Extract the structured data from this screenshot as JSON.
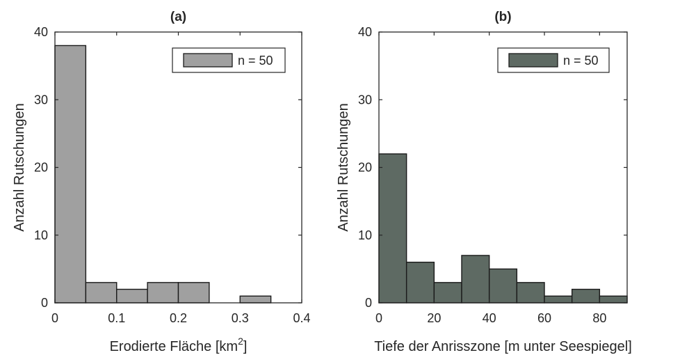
{
  "chart_data": [
    {
      "type": "bar",
      "title": "(a)",
      "xlabel": "Erodierte Fläche [km",
      "xlabel_sup": "2",
      "xlabel_end": "]",
      "ylabel": "Anzahl Rutschungen",
      "xlim": [
        0,
        0.4
      ],
      "ylim": [
        0,
        40
      ],
      "xticks": [
        0,
        0.1,
        0.2,
        0.3,
        0.4
      ],
      "xtick_labels": [
        "0",
        "0.1",
        "0.2",
        "0.3",
        "0.4"
      ],
      "yticks": [
        0,
        10,
        20,
        30,
        40
      ],
      "ytick_labels": [
        "0",
        "10",
        "20",
        "30",
        "40"
      ],
      "bin_edges": [
        0,
        0.05,
        0.1,
        0.15,
        0.2,
        0.25,
        0.3,
        0.35
      ],
      "values": [
        38,
        3,
        2,
        3,
        3,
        0,
        1
      ],
      "bar_color": "#a0a0a0",
      "legend": {
        "label": "n = 50",
        "position": "top-right"
      },
      "grid": false
    },
    {
      "type": "bar",
      "title": "(b)",
      "xlabel": "Tiefe der Anrisszone [m unter Seespiegel]",
      "ylabel": "Anzahl Rutschungen",
      "xlim": [
        0,
        90
      ],
      "ylim": [
        0,
        40
      ],
      "xticks": [
        0,
        20,
        40,
        60,
        80
      ],
      "xtick_labels": [
        "0",
        "20",
        "40",
        "60",
        "80"
      ],
      "yticks": [
        0,
        10,
        20,
        30,
        40
      ],
      "ytick_labels": [
        "0",
        "10",
        "20",
        "30",
        "40"
      ],
      "bin_edges": [
        0,
        10,
        20,
        30,
        40,
        50,
        60,
        70,
        80,
        90
      ],
      "values": [
        22,
        6,
        3,
        7,
        5,
        3,
        1,
        2,
        1
      ],
      "bar_color": "#5e6a63",
      "legend": {
        "label": "n = 50",
        "position": "top-right"
      },
      "grid": false
    }
  ]
}
